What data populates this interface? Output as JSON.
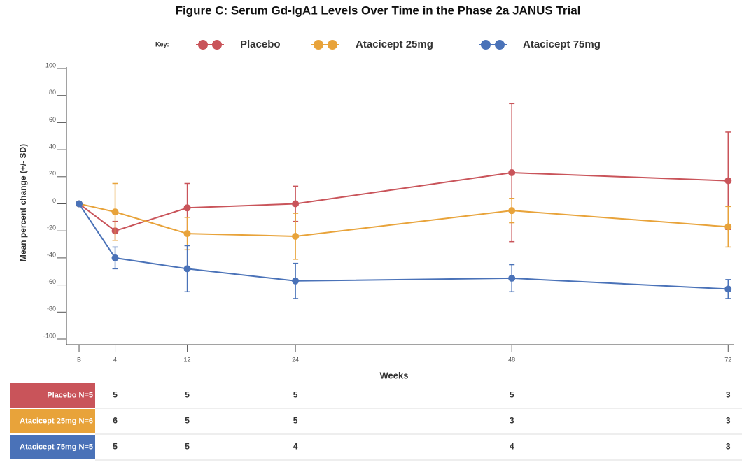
{
  "chart_data": {
    "type": "line",
    "title": "Figure C: Serum Gd-IgA1 Levels Over Time in the Phase 2a JANUS Trial",
    "legend_title": "Key:",
    "x_label": "Weeks",
    "y_label": "Mean percent change (+/- SD)",
    "x": [
      0,
      4,
      12,
      24,
      48,
      72
    ],
    "xlim": [
      -1.4,
      72.6
    ],
    "xticks": [
      {
        "value": 0,
        "label": "B"
      },
      4,
      12,
      24,
      48,
      72
    ],
    "ylim": [
      -100,
      100
    ],
    "yticks": [
      -100,
      -80,
      -60,
      -40,
      -20,
      0,
      20,
      40,
      60,
      80,
      100
    ],
    "series": [
      {
        "name": "Placebo",
        "color": "#c9545a",
        "values": [
          0,
          -20,
          -3,
          0,
          23,
          17
        ],
        "error": [
          null,
          7,
          18,
          13,
          51,
          36
        ]
      },
      {
        "name": "Atacicept 25mg",
        "color": "#e8a33a",
        "values": [
          0,
          -6,
          -22,
          -24,
          -5,
          -17
        ],
        "error": [
          null,
          21,
          12,
          17,
          9,
          15
        ]
      },
      {
        "name": "Atacicept 75mg",
        "color": "#4a72b8",
        "values": [
          0,
          -40,
          -48,
          -57,
          -55,
          -63
        ],
        "error": [
          null,
          8,
          17,
          13,
          10,
          7
        ]
      }
    ],
    "table": {
      "rows": [
        {
          "label": "Placebo N=5",
          "values": [
            5,
            5,
            5,
            5,
            3
          ]
        },
        {
          "label": "Atacicept 25mg N=6",
          "values": [
            6,
            5,
            5,
            3,
            3
          ]
        },
        {
          "label": "Atacicept 75mg N=5",
          "values": [
            5,
            5,
            4,
            4,
            3
          ]
        }
      ]
    }
  }
}
